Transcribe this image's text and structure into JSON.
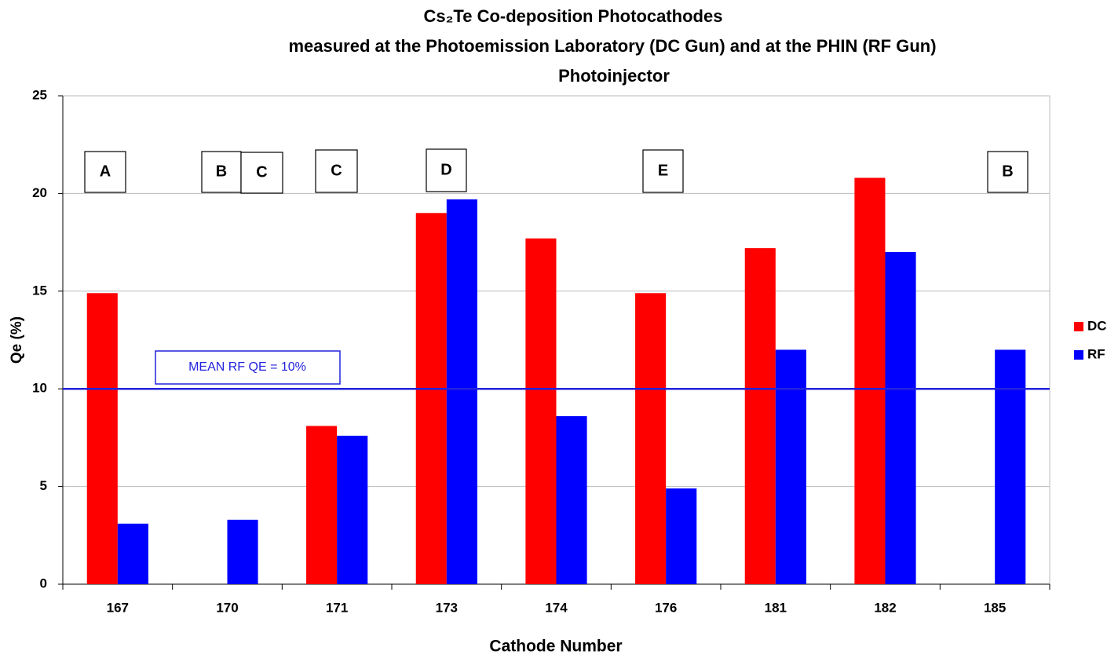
{
  "chart_data": {
    "type": "bar",
    "title": [
      "Cs₂Te Co-deposition  Photocathodes",
      "measured at the Photoemission  Laboratory (DC Gun) and at the PHIN (RF Gun)",
      "Photoinjector"
    ],
    "x_label": "Cathode Number",
    "y_label": "Qe (%)",
    "categories": [
      "167",
      "170",
      "171",
      "173",
      "174",
      "176",
      "181",
      "182",
      "185"
    ],
    "series": [
      {
        "name": "DC",
        "color": "#ff0000",
        "values": [
          14.9,
          null,
          8.1,
          19.0,
          17.7,
          14.9,
          17.2,
          20.8,
          null
        ]
      },
      {
        "name": "RF",
        "color": "#0000ff",
        "values": [
          3.1,
          3.3,
          7.6,
          19.7,
          8.6,
          4.9,
          12.0,
          17.0,
          12.0
        ]
      }
    ],
    "ylim": [
      0,
      25
    ],
    "yticks": [
      0,
      5,
      10,
      15,
      20,
      25
    ],
    "grid": true,
    "legend": "right",
    "reference_line": {
      "value": 10,
      "label": "MEAN RF QE = 10%",
      "color": "#2222dd"
    },
    "annotations": [
      "A",
      "B",
      "C",
      "C",
      "D",
      "E",
      "B"
    ]
  }
}
